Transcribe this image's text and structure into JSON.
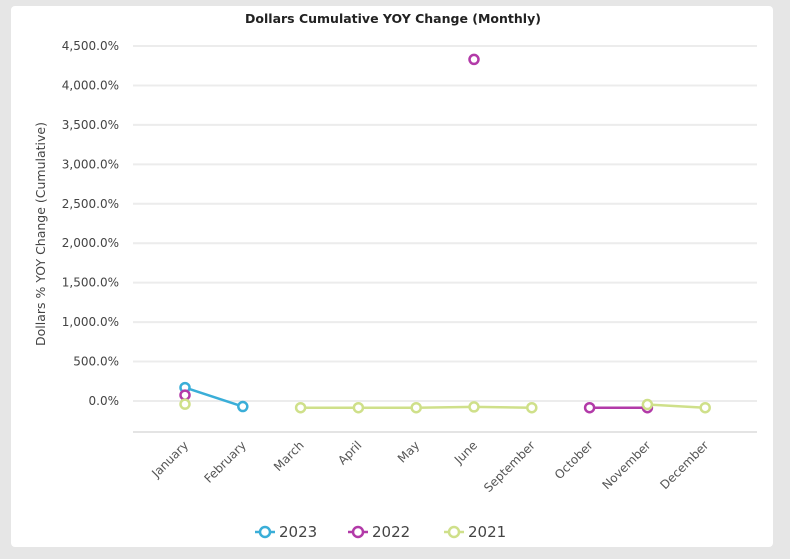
{
  "chart_data": {
    "type": "line",
    "title": "Dollars Cumulative YOY Change (Monthly)",
    "ylabel": "Dollars % YOY Change (Cumulative)",
    "xlabel": "",
    "categories": [
      "January",
      "February",
      "March",
      "April",
      "May",
      "June",
      "September",
      "October",
      "November",
      "December"
    ],
    "yticks": [
      "0.0%",
      "500.0%",
      "1,000.0%",
      "1,500.0%",
      "2,000.0%",
      "2,500.0%",
      "3,000.0%",
      "3,500.0%",
      "4,000.0%",
      "4,500.0%"
    ],
    "ylim": [
      -400,
      4500
    ],
    "grid": true,
    "legend_position": "bottom",
    "series": [
      {
        "name": "2023",
        "color": "#3aaed8",
        "values": [
          170,
          -70,
          null,
          null,
          null,
          null,
          null,
          null,
          null,
          null
        ]
      },
      {
        "name": "2022",
        "color": "#b23aa8",
        "values": [
          75,
          null,
          null,
          null,
          null,
          4330,
          null,
          -85,
          -85,
          null
        ]
      },
      {
        "name": "2021",
        "color": "#cfe08a",
        "values": [
          -40,
          null,
          -85,
          -85,
          -85,
          -75,
          -85,
          null,
          -45,
          -85
        ]
      }
    ]
  }
}
